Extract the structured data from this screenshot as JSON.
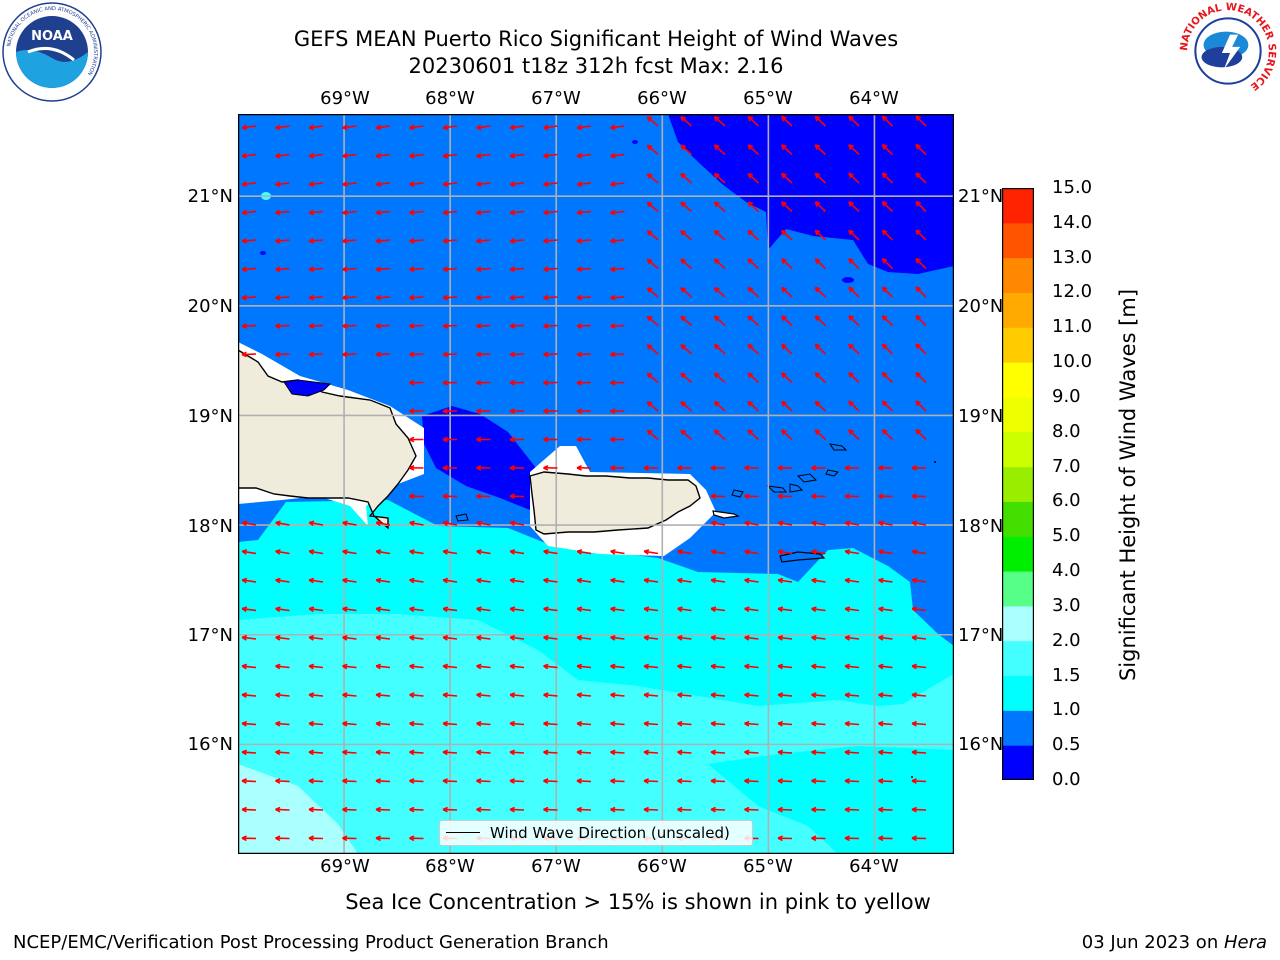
{
  "title": {
    "line1": "GEFS MEAN Puerto Rico Significant Height of Wind Waves",
    "line2": "20230601 t18z 312h fcst   Max: 2.16"
  },
  "logos": {
    "left": {
      "name": "NOAA",
      "ring_text": "NATIONAL OCEANIC AND ATMOSPHERIC ADMINISTRATION",
      "bottom_text": "U.S. DEPARTMENT OF COMMERCE"
    },
    "right": {
      "name": "NATIONAL WEATHER SERVICE"
    }
  },
  "map": {
    "region": "Puerto Rico",
    "lon_labels": [
      "69°W",
      "68°W",
      "67°W",
      "66°W",
      "65°W",
      "64°W"
    ],
    "lat_labels": [
      "21°N",
      "20°N",
      "19°N",
      "18°N",
      "17°N",
      "16°N"
    ],
    "lon_range": [
      -70.0,
      -63.25
    ],
    "lat_range": [
      15.0,
      21.75
    ],
    "grid": true,
    "vector_color": "#ff0000",
    "land_color": "#efecdc"
  },
  "legend": {
    "label": "Wind Wave Direction (unscaled)",
    "placement": "lower center"
  },
  "colorbar": {
    "label": "Significant Height of Wind Waves [m]",
    "levels": [
      "0.0",
      "0.5",
      "1.0",
      "1.5",
      "2.0",
      "3.0",
      "4.0",
      "5.0",
      "6.0",
      "7.0",
      "8.0",
      "9.0",
      "10.0",
      "11.0",
      "12.0",
      "13.0",
      "14.0",
      "15.0"
    ],
    "colors": [
      "#0000ff",
      "#0077ff",
      "#00ffff",
      "#44ffff",
      "#aaffff",
      "#55ff88",
      "#00ee00",
      "#44dd00",
      "#99ee00",
      "#ccff00",
      "#eeff00",
      "#ffff00",
      "#ffcc00",
      "#ffaa00",
      "#ff8800",
      "#ff5500",
      "#ff2200"
    ]
  },
  "ice_note": "Sea Ice Concentration > 15% is shown in pink to yellow",
  "footer": {
    "left": "NCEP/EMC/Verification Post Processing Product Generation Branch",
    "right_prefix": "03 Jun 2023 on ",
    "right_machine": "Hera"
  }
}
